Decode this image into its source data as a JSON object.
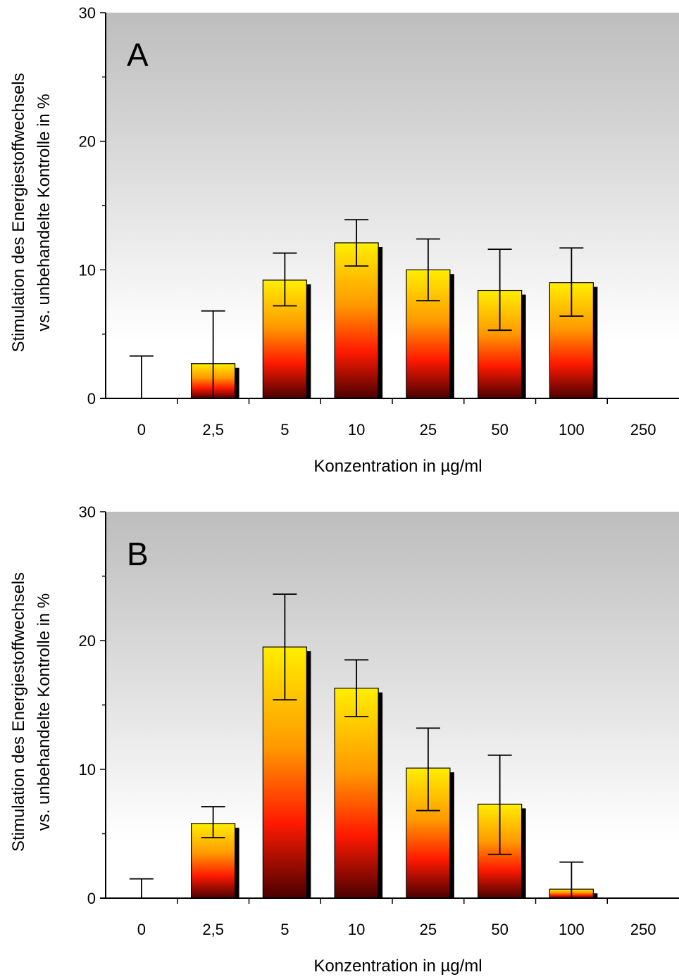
{
  "chart_data": [
    {
      "type": "bar",
      "panel_label": "A",
      "categories": [
        "0",
        "2,5",
        "5",
        "10",
        "25",
        "50",
        "100",
        "250"
      ],
      "values": [
        0,
        2.7,
        9.2,
        12.1,
        10.0,
        8.4,
        9.0,
        0
      ],
      "error_upper": [
        3.3,
        6.8,
        11.3,
        13.9,
        12.4,
        11.6,
        11.7,
        0
      ],
      "error_lower": [
        0,
        0,
        7.2,
        10.3,
        7.6,
        5.3,
        6.4,
        0
      ],
      "xlabel": "Konzentration in µg/ml",
      "ylabel": [
        "Stimulation des Energiestoffwechsels",
        "vs. unbehandelte Kontrolle in %"
      ],
      "ylim": [
        0,
        30
      ],
      "yticks": [
        "0",
        "10",
        "20",
        "30"
      ]
    },
    {
      "type": "bar",
      "panel_label": "B",
      "categories": [
        "0",
        "2,5",
        "5",
        "10",
        "25",
        "50",
        "100",
        "250"
      ],
      "values": [
        0,
        5.8,
        19.5,
        16.3,
        10.1,
        7.3,
        0.7,
        0
      ],
      "error_upper": [
        1.5,
        7.1,
        23.6,
        18.5,
        13.2,
        11.1,
        2.8,
        0
      ],
      "error_lower": [
        0,
        4.7,
        15.4,
        14.1,
        6.8,
        3.4,
        0,
        0
      ],
      "xlabel": "Konzentration in µg/ml",
      "ylabel": [
        "Stimulation des Energiestoffwechsels",
        "vs. unbehandelte Kontrolle in %"
      ],
      "ylim": [
        0,
        30
      ],
      "yticks": [
        "0",
        "10",
        "20",
        "30"
      ]
    }
  ],
  "colors": {
    "bar_top": "#ffee00",
    "bar_mid_orange": "#ff9900",
    "bar_mid_red": "#ff1a00",
    "bar_bottom": "#4a0000",
    "bar_shadow": "#000000",
    "plot_bg_top": "#bdbdbd",
    "plot_bg_bottom": "#ffffff"
  }
}
